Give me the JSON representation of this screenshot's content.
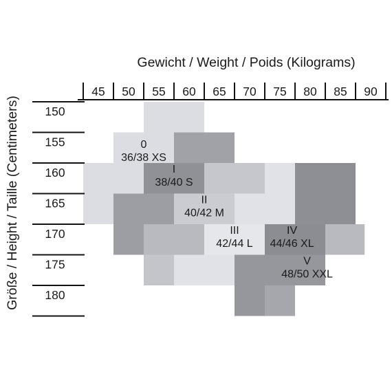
{
  "chart_data": {
    "type": "heatmap",
    "title": "Gewicht / Weight / Poids (Kilograms)",
    "xlabel": "Gewicht / Weight / Poids (Kilograms)",
    "ylabel": "Größe / Height / Taille (Centimeters)",
    "x_ticks": [
      "45",
      "50",
      "55",
      "60",
      "65",
      "70",
      "75",
      "80",
      "85",
      "90"
    ],
    "y_ticks": [
      "150",
      "155",
      "160",
      "165",
      "170",
      "175",
      "180"
    ],
    "cells": [
      {
        "w_from": 55,
        "w_to": 65,
        "h_from": 150,
        "h_to": 155,
        "color": "#dcdde3"
      },
      {
        "w_from": 50,
        "w_to": 60,
        "h_from": 155,
        "h_to": 160,
        "color": "#dcdde3"
      },
      {
        "w_from": 60,
        "w_to": 70,
        "h_from": 155,
        "h_to": 160,
        "color": "#a1a2a8"
      },
      {
        "w_from": 45,
        "w_to": 55,
        "h_from": 160,
        "h_to": 165,
        "color": "#dcdde3"
      },
      {
        "w_from": 55,
        "w_to": 65,
        "h_from": 160,
        "h_to": 165,
        "color": "#909196"
      },
      {
        "w_from": 65,
        "w_to": 75,
        "h_from": 160,
        "h_to": 165,
        "color": "#c6c7cd"
      },
      {
        "w_from": 75,
        "w_to": 80,
        "h_from": 160,
        "h_to": 165,
        "color": "#e1e2e7"
      },
      {
        "w_from": 80,
        "w_to": 90,
        "h_from": 160,
        "h_to": 165,
        "color": "#8e8f95"
      },
      {
        "w_from": 45,
        "w_to": 50,
        "h_from": 165,
        "h_to": 170,
        "color": "#dcdde3"
      },
      {
        "w_from": 50,
        "w_to": 60,
        "h_from": 165,
        "h_to": 170,
        "color": "#9d9ea4"
      },
      {
        "w_from": 60,
        "w_to": 70,
        "h_from": 165,
        "h_to": 170,
        "color": "#cbccd2"
      },
      {
        "w_from": 70,
        "w_to": 80,
        "h_from": 165,
        "h_to": 170,
        "color": "#e1e2e7"
      },
      {
        "w_from": 80,
        "w_to": 90,
        "h_from": 165,
        "h_to": 170,
        "color": "#8e8f95"
      },
      {
        "w_from": 50,
        "w_to": 55,
        "h_from": 170,
        "h_to": 175,
        "color": "#9d9ea4"
      },
      {
        "w_from": 55,
        "w_to": 65,
        "h_from": 170,
        "h_to": 175,
        "color": "#b9bac0"
      },
      {
        "w_from": 65,
        "w_to": 75,
        "h_from": 170,
        "h_to": 175,
        "color": "#e6e7eb"
      },
      {
        "w_from": 75,
        "w_to": 85,
        "h_from": 170,
        "h_to": 175,
        "color": "#8c8d93"
      },
      {
        "w_from": 85,
        "w_to": 91.5,
        "h_from": 170,
        "h_to": 175,
        "color": "#b9bac0"
      },
      {
        "w_from": 55,
        "w_to": 60,
        "h_from": 175,
        "h_to": 180,
        "color": "#c4c5cb"
      },
      {
        "w_from": 60,
        "w_to": 70,
        "h_from": 175,
        "h_to": 180,
        "color": "#e1e2e7"
      },
      {
        "w_from": 70,
        "w_to": 85,
        "h_from": 175,
        "h_to": 180,
        "color": "#96979d"
      },
      {
        "w_from": 70,
        "w_to": 75,
        "h_from": 180,
        "h_to": 185,
        "color": "#96979d"
      },
      {
        "w_from": 75,
        "w_to": 80,
        "h_from": 180,
        "h_to": 185,
        "color": "#a6a7ad"
      }
    ],
    "size_labels": [
      {
        "size": "0",
        "eu": "36/38 XS",
        "w": 55,
        "h": 158
      },
      {
        "size": "I",
        "eu": "38/40 S",
        "w": 60,
        "h": 162
      },
      {
        "size": "II",
        "eu": "40/42 M",
        "w": 65,
        "h": 167
      },
      {
        "size": "III",
        "eu": "42/44 L",
        "w": 70,
        "h": 172
      },
      {
        "size": "IV",
        "eu": "44/46 XL",
        "w": 79.5,
        "h": 172
      },
      {
        "size": "V",
        "eu": "48/50 XXL",
        "w": 82,
        "h": 177
      }
    ]
  }
}
